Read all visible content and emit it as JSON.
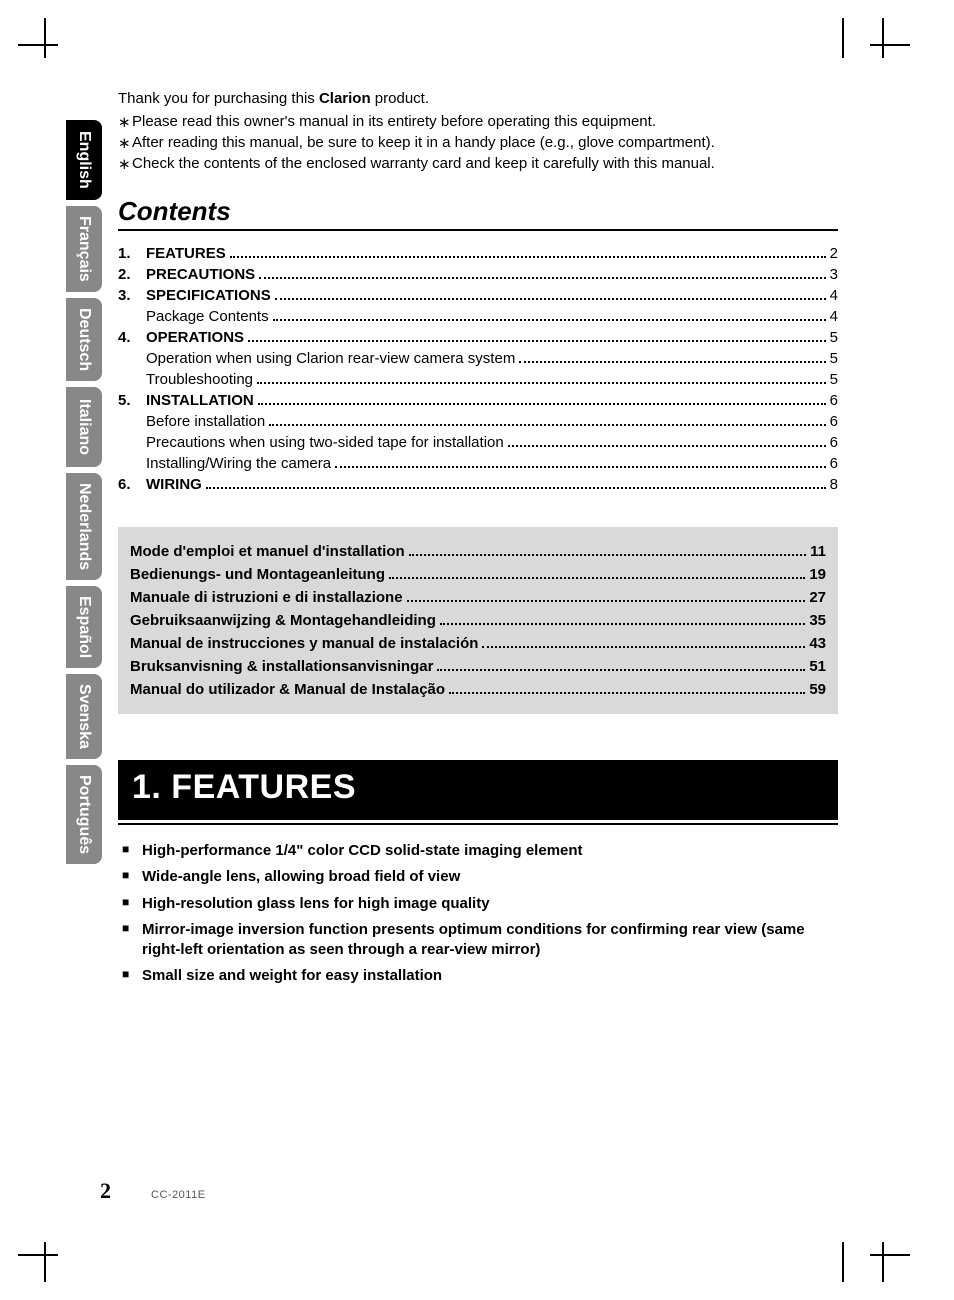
{
  "colors": {
    "tab_active_bg": "#000000",
    "tab_inactive_bg": "#888888",
    "tab_text": "#ffffff",
    "lang_toc_bg": "#d9d9d9",
    "banner_bg": "#000000",
    "banner_text": "#ffffff"
  },
  "language_tabs": [
    {
      "label": "English",
      "active": true
    },
    {
      "label": "Français",
      "active": false
    },
    {
      "label": "Deutsch",
      "active": false
    },
    {
      "label": "Italiano",
      "active": false
    },
    {
      "label": "Nederlands",
      "active": false
    },
    {
      "label": "Español",
      "active": false
    },
    {
      "label": "Svenska",
      "active": false
    },
    {
      "label": "Português",
      "active": false
    }
  ],
  "intro": {
    "thanks_prefix": "Thank you for purchasing this ",
    "brand": "Clarion",
    "thanks_suffix": " product.",
    "bullets": [
      "Please read this owner's manual in its entirety before operating this equipment.",
      "After reading this manual, be sure to keep it in a handy place (e.g., glove compartment).",
      "Check the contents of the enclosed warranty card and keep it carefully with this manual."
    ]
  },
  "contents_heading": "Contents",
  "toc": [
    {
      "num": "1.",
      "label": "FEATURES",
      "page": "2",
      "subs": []
    },
    {
      "num": "2.",
      "label": "PRECAUTIONS",
      "page": "3",
      "subs": []
    },
    {
      "num": "3.",
      "label": "SPECIFICATIONS",
      "page": "4",
      "subs": [
        {
          "label": "Package Contents",
          "page": "4"
        }
      ]
    },
    {
      "num": "4.",
      "label": "OPERATIONS",
      "page": "5",
      "subs": [
        {
          "label": "Operation when using Clarion rear-view camera system",
          "page": "5"
        },
        {
          "label": "Troubleshooting",
          "page": "5"
        }
      ]
    },
    {
      "num": "5.",
      "label": "INSTALLATION",
      "page": "6",
      "subs": [
        {
          "label": "Before installation",
          "page": "6"
        },
        {
          "label": "Precautions when using two-sided tape for installation",
          "page": "6"
        },
        {
          "label": "Installing/Wiring the camera",
          "page": "6"
        }
      ]
    },
    {
      "num": "6.",
      "label": "WIRING",
      "page": "8",
      "subs": []
    }
  ],
  "language_manuals": [
    {
      "label": "Mode d'emploi et manuel d'installation",
      "page": "11"
    },
    {
      "label": "Bedienungs- und Montageanleitung",
      "page": "19"
    },
    {
      "label": "Manuale di istruzioni e di installazione",
      "page": "27"
    },
    {
      "label": "Gebruiksaanwijzing & Montagehandleiding",
      "page": "35"
    },
    {
      "label": "Manual de instrucciones y manual de instalación",
      "page": "43"
    },
    {
      "label": "Bruksanvisning & installationsanvisningar",
      "page": "51"
    },
    {
      "label": "Manual do utilizador & Manual de Instalação",
      "page": "59"
    }
  ],
  "section_banner": "1. FEATURES",
  "features": [
    "High-performance 1/4\" color CCD solid-state imaging element",
    "Wide-angle lens, allowing broad field of view",
    "High-resolution glass lens for high image quality",
    "Mirror-image inversion function presents optimum conditions for confirming rear view (same right-left orientation as seen through a rear-view mirror)",
    "Small size and weight for easy installation"
  ],
  "footer": {
    "page_number": "2",
    "model": "CC-2011E"
  }
}
